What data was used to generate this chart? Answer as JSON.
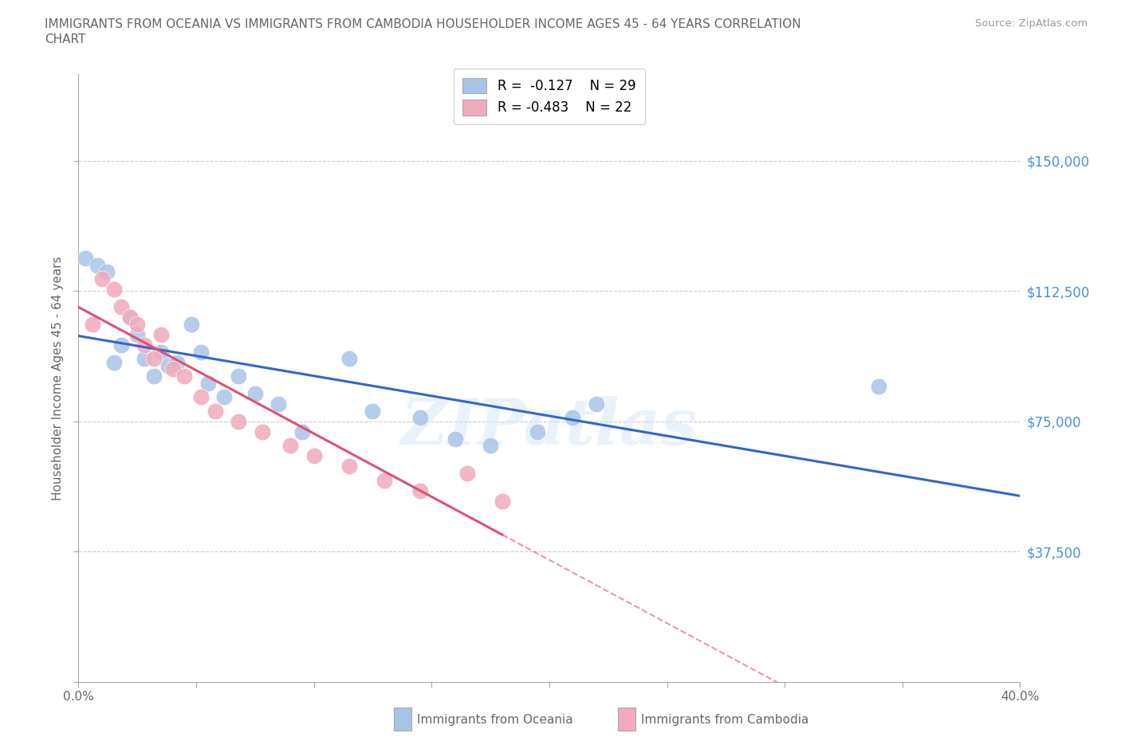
{
  "title_line1": "IMMIGRANTS FROM OCEANIA VS IMMIGRANTS FROM CAMBODIA HOUSEHOLDER INCOME AGES 45 - 64 YEARS CORRELATION",
  "title_line2": "CHART",
  "source": "Source: ZipAtlas.com",
  "ylabel": "Householder Income Ages 45 - 64 years",
  "xmin": 0.0,
  "xmax": 0.4,
  "ymin": 0,
  "ymax": 175000,
  "yticks": [
    0,
    37500,
    75000,
    112500,
    150000
  ],
  "ytick_labels": [
    "",
    "$37,500",
    "$75,000",
    "$112,500",
    "$150,000"
  ],
  "xticks": [
    0.0,
    0.05,
    0.1,
    0.15,
    0.2,
    0.25,
    0.3,
    0.35,
    0.4
  ],
  "xtick_labels": [
    "0.0%",
    "",
    "",
    "",
    "",
    "",
    "",
    "",
    "40.0%"
  ],
  "oceania_color": "#aac4e8",
  "cambodia_color": "#f0aabb",
  "oceania_line_color": "#3366cc",
  "cambodia_line_color": "#e05075",
  "legend_oceania": "R =  -0.127    N = 29",
  "legend_cambodia": "R = -0.483    N = 22",
  "label_oceania": "Immigrants from Oceania",
  "label_cambodia": "Immigrants from Cambodia",
  "oceania_x": [
    0.003,
    0.008,
    0.012,
    0.015,
    0.018,
    0.022,
    0.025,
    0.028,
    0.032,
    0.035,
    0.038,
    0.042,
    0.048,
    0.052,
    0.055,
    0.062,
    0.068,
    0.075,
    0.085,
    0.095,
    0.115,
    0.125,
    0.145,
    0.16,
    0.175,
    0.195,
    0.21,
    0.22,
    0.34
  ],
  "oceania_y": [
    122000,
    120000,
    118000,
    92000,
    97000,
    105000,
    100000,
    93000,
    88000,
    95000,
    91000,
    92000,
    103000,
    95000,
    86000,
    82000,
    88000,
    83000,
    80000,
    72000,
    93000,
    78000,
    76000,
    70000,
    68000,
    72000,
    76000,
    80000,
    85000
  ],
  "cambodia_x": [
    0.006,
    0.01,
    0.015,
    0.018,
    0.022,
    0.025,
    0.028,
    0.032,
    0.035,
    0.04,
    0.045,
    0.052,
    0.058,
    0.068,
    0.078,
    0.09,
    0.1,
    0.115,
    0.13,
    0.145,
    0.165,
    0.18
  ],
  "cambodia_y": [
    103000,
    116000,
    113000,
    108000,
    105000,
    103000,
    97000,
    93000,
    100000,
    90000,
    88000,
    82000,
    78000,
    75000,
    72000,
    68000,
    65000,
    62000,
    58000,
    55000,
    60000,
    52000
  ],
  "watermark": "ZIPatlas",
  "background_color": "#ffffff",
  "grid_color": "#cccccc",
  "title_color": "#666666",
  "source_color": "#999999",
  "axis_label_color": "#666666",
  "tick_label_color": "#666666",
  "right_tick_color": "#4a90d9"
}
